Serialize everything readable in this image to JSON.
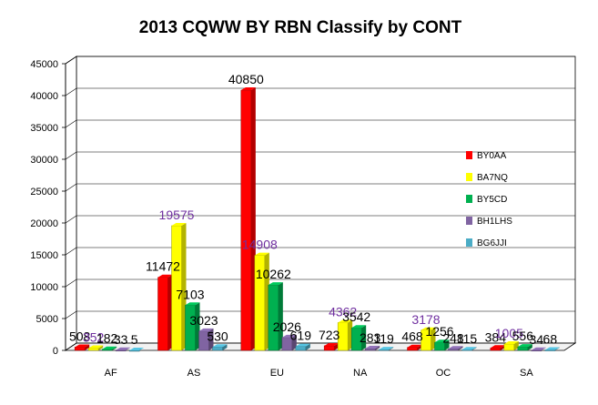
{
  "chart_data": {
    "type": "bar",
    "title": "2013  CQWW BY RBN  Classify by CONT",
    "categories": [
      "AF",
      "AS",
      "EU",
      "NA",
      "OC",
      "SA"
    ],
    "series": [
      {
        "name": "BY0AA",
        "color": "#ff0000",
        "values": [
          508,
          11472,
          40850,
          723,
          468,
          384
        ]
      },
      {
        "name": "BA7NQ",
        "color": "#ffff00",
        "values": [
          352,
          19575,
          14908,
          4362,
          3178,
          1005
        ]
      },
      {
        "name": "BY5CD",
        "color": "#00b050",
        "values": [
          182,
          7103,
          10262,
          3542,
          1256,
          556
        ]
      },
      {
        "name": "BH1LHS",
        "color": "#8064a2",
        "values": [
          33,
          3023,
          2026,
          283,
          248,
          34
        ]
      },
      {
        "name": "BG6JJI",
        "color": "#4bacc6",
        "values": [
          5,
          530,
          619,
          119,
          115,
          68
        ]
      }
    ],
    "yticks": [
      0,
      5000,
      10000,
      15000,
      20000,
      25000,
      30000,
      35000,
      40000,
      45000
    ],
    "ylim": [
      0,
      45000
    ],
    "grid": true,
    "legend_position": "right",
    "label_colors": [
      "#000000",
      "#7030a0",
      "#000000",
      "#000000",
      "#000000"
    ]
  }
}
